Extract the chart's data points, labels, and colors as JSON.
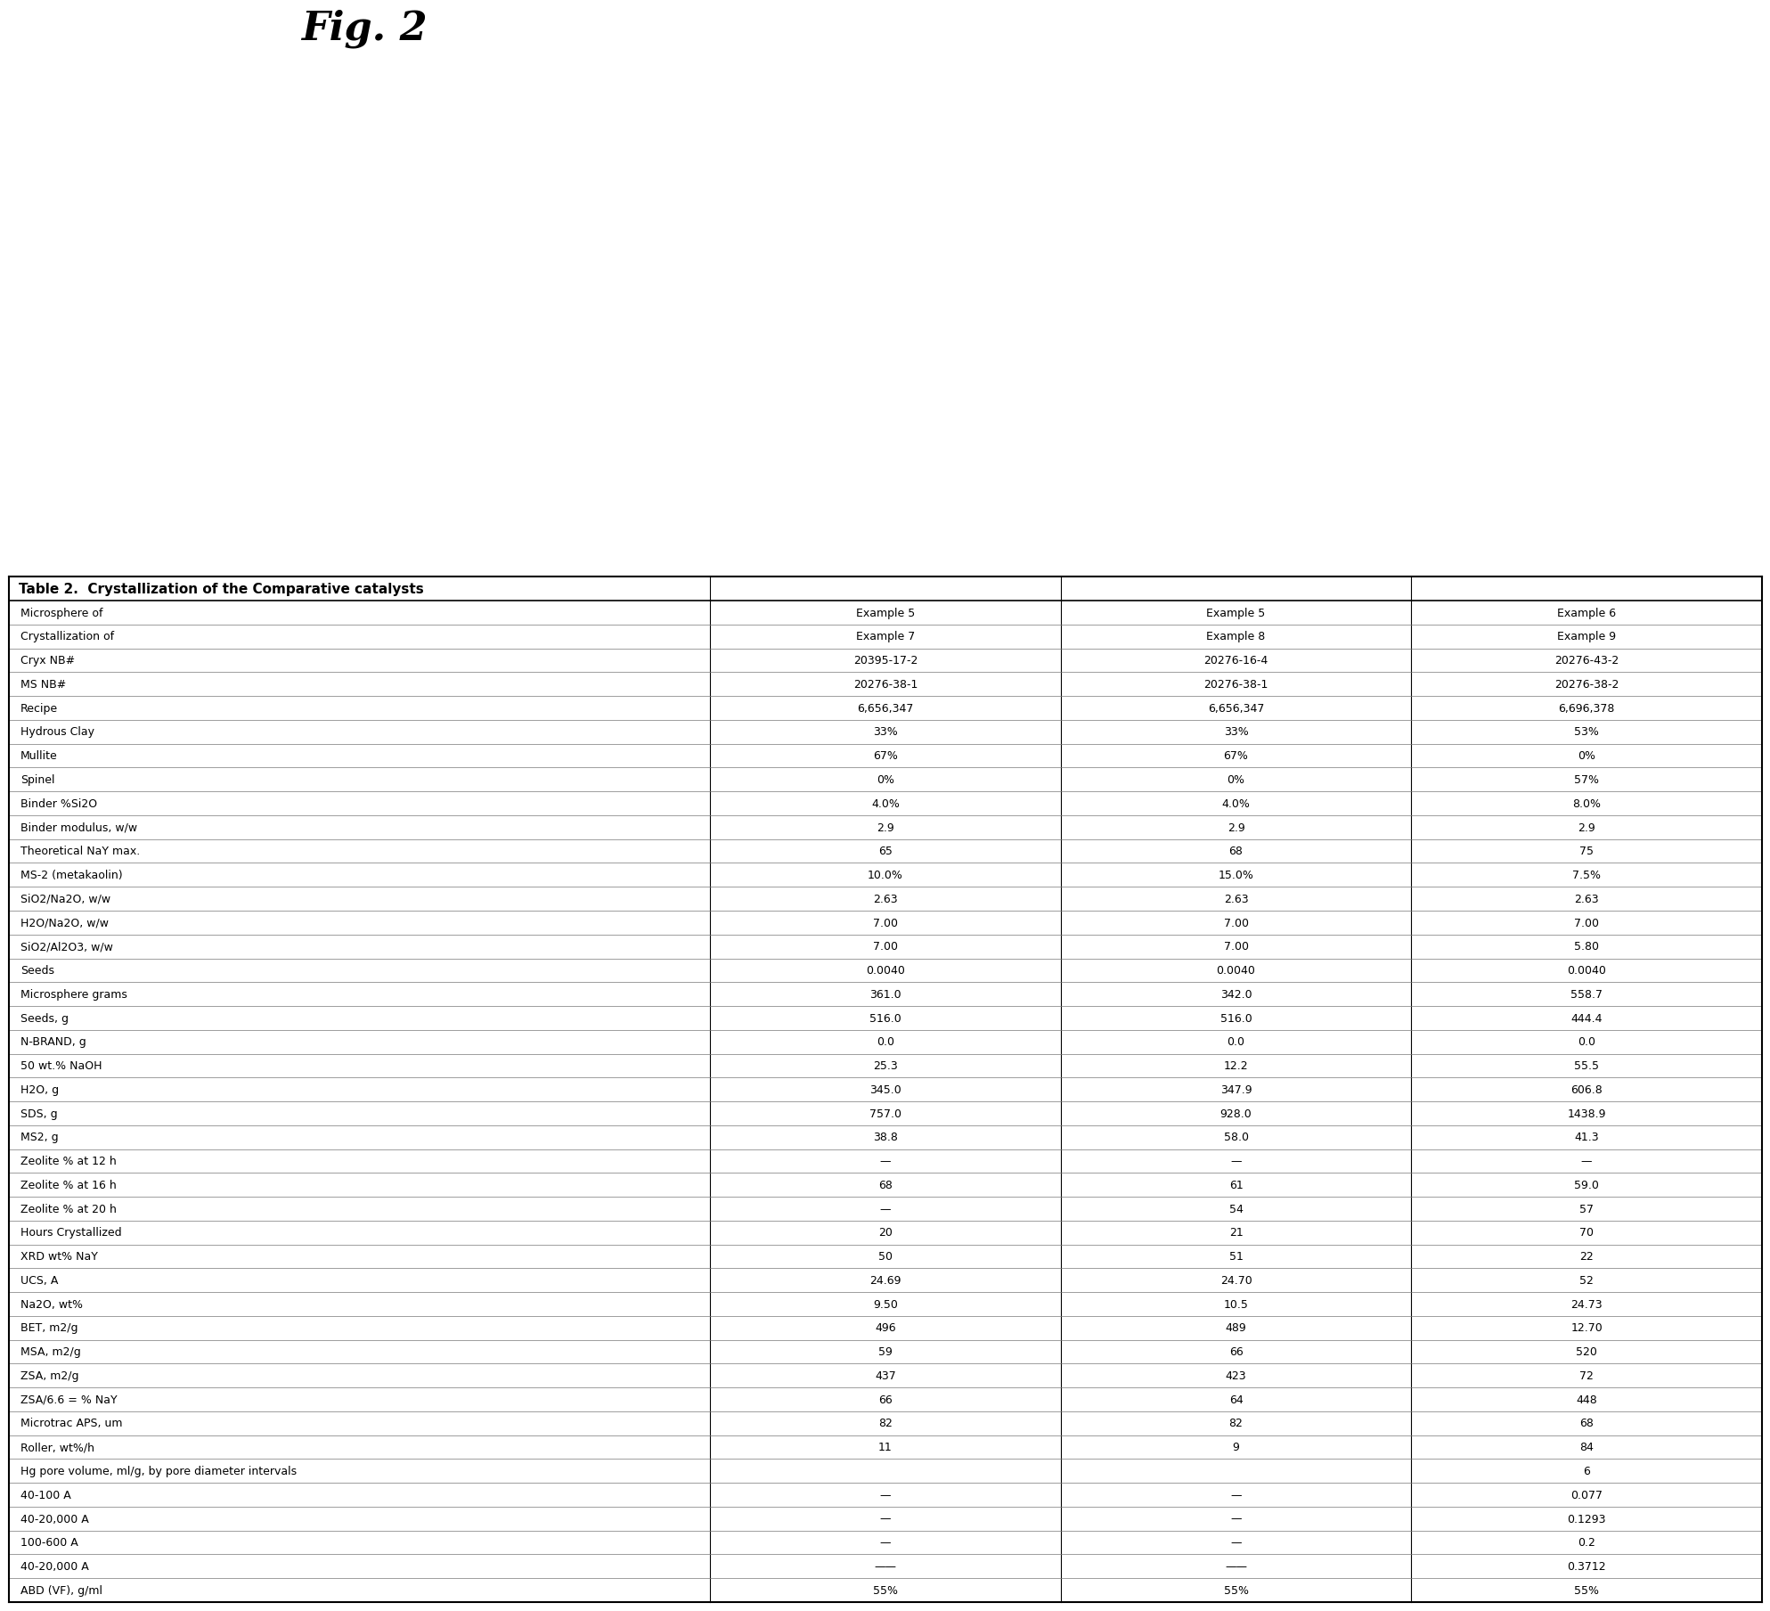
{
  "title": "Table 2.  Crystallization of the Comparative catalysts",
  "fig2_label": "Fig. 2",
  "row_labels": [
    "Microsphere of",
    "Crystallization of",
    "Cryx NB#",
    "MS NB#",
    "Recipe",
    "Hydrous Clay",
    "Mullite",
    "Spinel",
    "Binder %Si2O",
    "Binder modulus, w/w",
    "Theoretical NaY max.",
    "MS-2 (metakaolin)",
    "SiO2/Na2O, w/w",
    "H2O/Na2O, w/w",
    "SiO2/Al2O3, w/w",
    "Seeds",
    "Microsphere grams",
    "Seeds, g",
    "N-BRAND, g",
    "50 wt.% NaOH",
    "H2O, g",
    "SDS, g",
    "MS2, g",
    "Zeolite % at 12 h",
    "Zeolite % at 16 h",
    "Zeolite % at 20 h",
    "Hours Crystallized",
    "XRD wt% NaY",
    "UCS, A",
    "Na2O, wt%",
    "BET, m2/g",
    "MSA, m2/g",
    "ZSA, m2/g",
    "ZSA/6.6 = % NaY",
    "Microtrac APS, um",
    "Roller, wt%/h",
    "Hg pore volume, ml/g, by pore diameter intervals",
    "40-100 A",
    "40-20,000 A",
    "100-600 A",
    "40-20,000 A",
    "ABD (VF), g/ml"
  ],
  "col1_label": "Example 5",
  "col2_label": "Example 5",
  "col3_label": "Example 6",
  "col1_data": [
    "Example 5",
    "Example 7",
    "20395-17-2",
    "20276-38-1",
    "6,656,347",
    "33%",
    "67%",
    "0%",
    "4.0%",
    "2.9",
    "65",
    "10.0%",
    "2.63",
    "7.00",
    "7.00",
    "0.0040",
    "361.0",
    "516.0",
    "0.0",
    "25.3",
    "345.0",
    "757.0",
    "38.8",
    "—",
    "68",
    "—",
    "20",
    "50",
    "24.69",
    "9.50",
    "496",
    "59",
    "437",
    "66",
    "82",
    "11",
    "",
    "—",
    "—",
    "—",
    "——",
    "55%"
  ],
  "col2_data": [
    "Example 5",
    "Example 8",
    "20276-16-4",
    "20276-38-1",
    "6,656,347",
    "33%",
    "67%",
    "0%",
    "4.0%",
    "2.9",
    "68",
    "15.0%",
    "2.63",
    "7.00",
    "7.00",
    "0.0040",
    "342.0",
    "516.0",
    "0.0",
    "12.2",
    "347.9",
    "928.0",
    "58.0",
    "—",
    "61",
    "54",
    "21",
    "51",
    "24.70",
    "10.5",
    "489",
    "66",
    "423",
    "64",
    "82",
    "9",
    "",
    "—",
    "—",
    "—",
    "——",
    "55%"
  ],
  "col3_data": [
    "Example 6",
    "Example 9",
    "20276-43-2",
    "20276-38-2",
    "6,696,378",
    "53%",
    "0%",
    "57%",
    "8.0%",
    "2.9",
    "75",
    "7.5%",
    "2.63",
    "7.00",
    "5.80",
    "0.0040",
    "558.7",
    "444.4",
    "0.0",
    "55.5",
    "606.8",
    "1438.9",
    "41.3",
    "—",
    "59.0",
    "57",
    "70",
    "22",
    "52",
    "24.73",
    "12.70",
    "520",
    "72",
    "448",
    "68",
    "84",
    "6",
    "0.077",
    "0.1293",
    "0.2",
    "0.3712",
    "55%"
  ],
  "background_color": "#ffffff",
  "border_color": "#000000",
  "text_color": "#000000",
  "title_font_size": 11,
  "cell_font_size": 9,
  "fig2_font_size": 32
}
